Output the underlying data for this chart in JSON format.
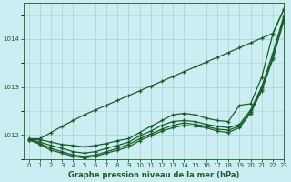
{
  "title": "Graphe pression niveau de la mer (hPa)",
  "background_color": "#cceef2",
  "grid_color": "#aad8dc",
  "line_color": "#1a5c2a",
  "xlim": [
    -0.5,
    23
  ],
  "ylim": [
    1011.55,
    1014.75
  ],
  "yticks": [
    1012,
    1013,
    1014
  ],
  "xticks": [
    0,
    1,
    2,
    3,
    4,
    5,
    6,
    7,
    8,
    9,
    10,
    11,
    12,
    13,
    14,
    15,
    16,
    17,
    18,
    19,
    20,
    21,
    22,
    23
  ],
  "series": [
    [
      1011.9,
      1011.9,
      1011.85,
      1011.8,
      1011.78,
      1011.75,
      1011.78,
      1011.82,
      1011.88,
      1011.92,
      1012.05,
      1012.18,
      1012.3,
      1012.42,
      1012.45,
      1012.42,
      1012.35,
      1012.3,
      1012.28,
      1012.62,
      1012.65,
      1013.2,
      1014.1,
      1014.62
    ],
    [
      1011.9,
      1011.85,
      1011.78,
      1011.72,
      1011.65,
      1011.62,
      1011.65,
      1011.72,
      1011.78,
      1011.85,
      1011.98,
      1012.08,
      1012.2,
      1012.28,
      1012.3,
      1012.28,
      1012.22,
      1012.18,
      1012.15,
      1012.22,
      1012.52,
      1013.0,
      1013.7,
      1014.48
    ],
    [
      1011.9,
      1011.82,
      1011.72,
      1011.65,
      1011.58,
      1011.55,
      1011.58,
      1011.65,
      1011.72,
      1011.8,
      1011.92,
      1012.02,
      1012.12,
      1012.2,
      1012.25,
      1012.22,
      1012.18,
      1012.12,
      1012.1,
      1012.18,
      1012.48,
      1012.95,
      1013.62,
      1014.42
    ],
    [
      1011.9,
      1011.8,
      1011.68,
      1011.62,
      1011.55,
      1011.52,
      1011.55,
      1011.62,
      1011.68,
      1011.75,
      1011.88,
      1011.98,
      1012.08,
      1012.15,
      1012.2,
      1012.18,
      1012.15,
      1012.08,
      1012.05,
      1012.15,
      1012.45,
      1012.92,
      1013.58,
      1014.38
    ],
    [
      1011.92,
      1011.92,
      1012.05,
      1012.18,
      1012.3,
      1012.42,
      1012.52,
      1012.62,
      1012.72,
      1012.82,
      1012.92,
      1013.02,
      1013.12,
      1013.22,
      1013.32,
      1013.42,
      1013.52,
      1013.62,
      1013.72,
      1013.82,
      1013.92,
      1014.02,
      1014.12,
      1014.62
    ]
  ],
  "marker": "+",
  "markersize": 3.5,
  "linewidth": 0.9
}
